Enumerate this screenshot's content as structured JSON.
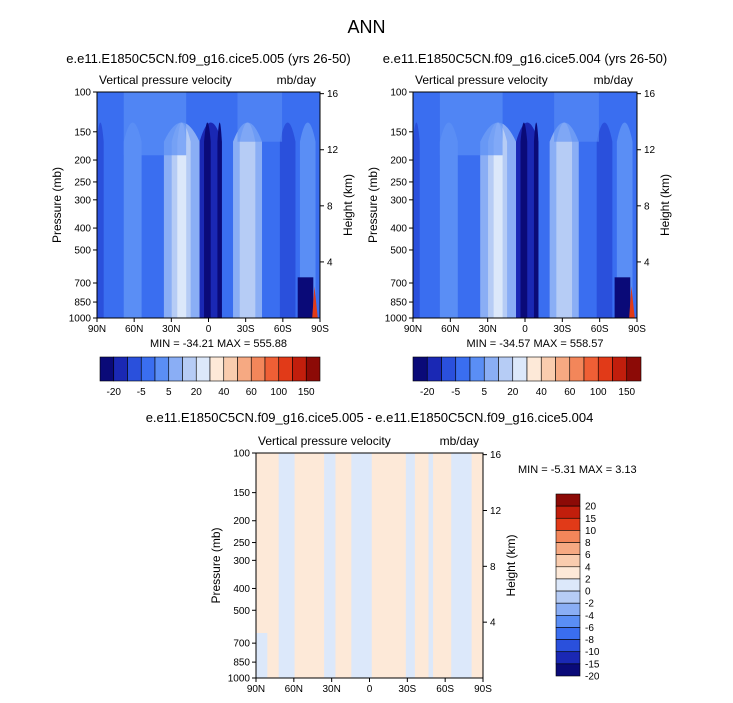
{
  "figure": {
    "title": "ANN",
    "colors": {
      "cb_top": [
        "#0a0a78",
        "#1a28b4",
        "#2a50dc",
        "#3a6ef0",
        "#5a8ef5",
        "#8aaef5",
        "#b6ccf5",
        "#dce8fa",
        "#fde9d8",
        "#f9ccae",
        "#f6a982",
        "#f3865a",
        "#ef5f35",
        "#e13a18",
        "#c11e0c",
        "#8c0a06"
      ],
      "cb_bottom": [
        "#8c0a06",
        "#c11e0c",
        "#e13a18",
        "#f3865a",
        "#f6a982",
        "#f9ccae",
        "#fde9d8",
        "#dce8fa",
        "#b6ccf5",
        "#8aaef5",
        "#5a8ef5",
        "#3a6ef0",
        "#2a50dc",
        "#1a28b4",
        "#0a0a78"
      ]
    }
  },
  "chart_data": [
    {
      "type": "heatmap",
      "title": "e.e11.E1850C5CN.f09_g16.cice5.005 (yrs 26-50)",
      "subtitle_left": "Vertical pressure velocity",
      "subtitle_right": "mb/day",
      "ylabel": "Pressure (mb)",
      "y2label": "Height (km)",
      "x_ticks": [
        "90N",
        "60N",
        "30N",
        "0",
        "30S",
        "60S",
        "90S"
      ],
      "y_ticks": [
        "100",
        "150",
        "200",
        "250",
        "300",
        "400",
        "500",
        "700",
        "850",
        "1000"
      ],
      "y2_ticks": [
        "16",
        "12",
        "8",
        "4"
      ],
      "y2_values": [
        16,
        12,
        8,
        4
      ],
      "stats": "MIN = -34.21   MAX = 555.88",
      "min": -34.21,
      "max": 555.88,
      "colorbar_labels": [
        "-20",
        "-5",
        "5",
        "20",
        "40",
        "60",
        "100",
        "150"
      ]
    },
    {
      "type": "heatmap",
      "title": "e.e11.E1850C5CN.f09_g16.cice5.004 (yrs 26-50)",
      "subtitle_left": "Vertical pressure velocity",
      "subtitle_right": "mb/day",
      "ylabel": "Pressure (mb)",
      "y2label": "Height (km)",
      "x_ticks": [
        "90N",
        "60N",
        "30N",
        "0",
        "30S",
        "60S",
        "90S"
      ],
      "y_ticks": [
        "100",
        "150",
        "200",
        "250",
        "300",
        "400",
        "500",
        "700",
        "850",
        "1000"
      ],
      "y2_ticks": [
        "16",
        "12",
        "8",
        "4"
      ],
      "y2_values": [
        16,
        12,
        8,
        4
      ],
      "stats": "MIN = -34.57   MAX = 558.57",
      "min": -34.57,
      "max": 558.57,
      "colorbar_labels": [
        "-20",
        "-5",
        "5",
        "20",
        "40",
        "60",
        "100",
        "150"
      ]
    },
    {
      "type": "heatmap",
      "title": "e.e11.E1850C5CN.f09_g16.cice5.005 - e.e11.E1850C5CN.f09_g16.cice5.004",
      "subtitle_left": "Vertical pressure velocity",
      "subtitle_right": "mb/day",
      "ylabel": "Pressure (mb)",
      "y2label": "Height (km)",
      "x_ticks": [
        "90N",
        "60N",
        "30N",
        "0",
        "30S",
        "60S",
        "90S"
      ],
      "y_ticks": [
        "100",
        "150",
        "200",
        "250",
        "300",
        "400",
        "500",
        "700",
        "850",
        "1000"
      ],
      "y2_ticks": [
        "16",
        "12",
        "8",
        "4"
      ],
      "y2_values": [
        16,
        12,
        8,
        4
      ],
      "stats": "MIN =  -5.31   MAX =   3.13",
      "min": -5.31,
      "max": 3.13,
      "colorbar_labels": [
        "20",
        "15",
        "10",
        "8",
        "6",
        "4",
        "2",
        "0",
        "-2",
        "-4",
        "-6",
        "-8",
        "-10",
        "-15",
        "-20"
      ]
    }
  ]
}
